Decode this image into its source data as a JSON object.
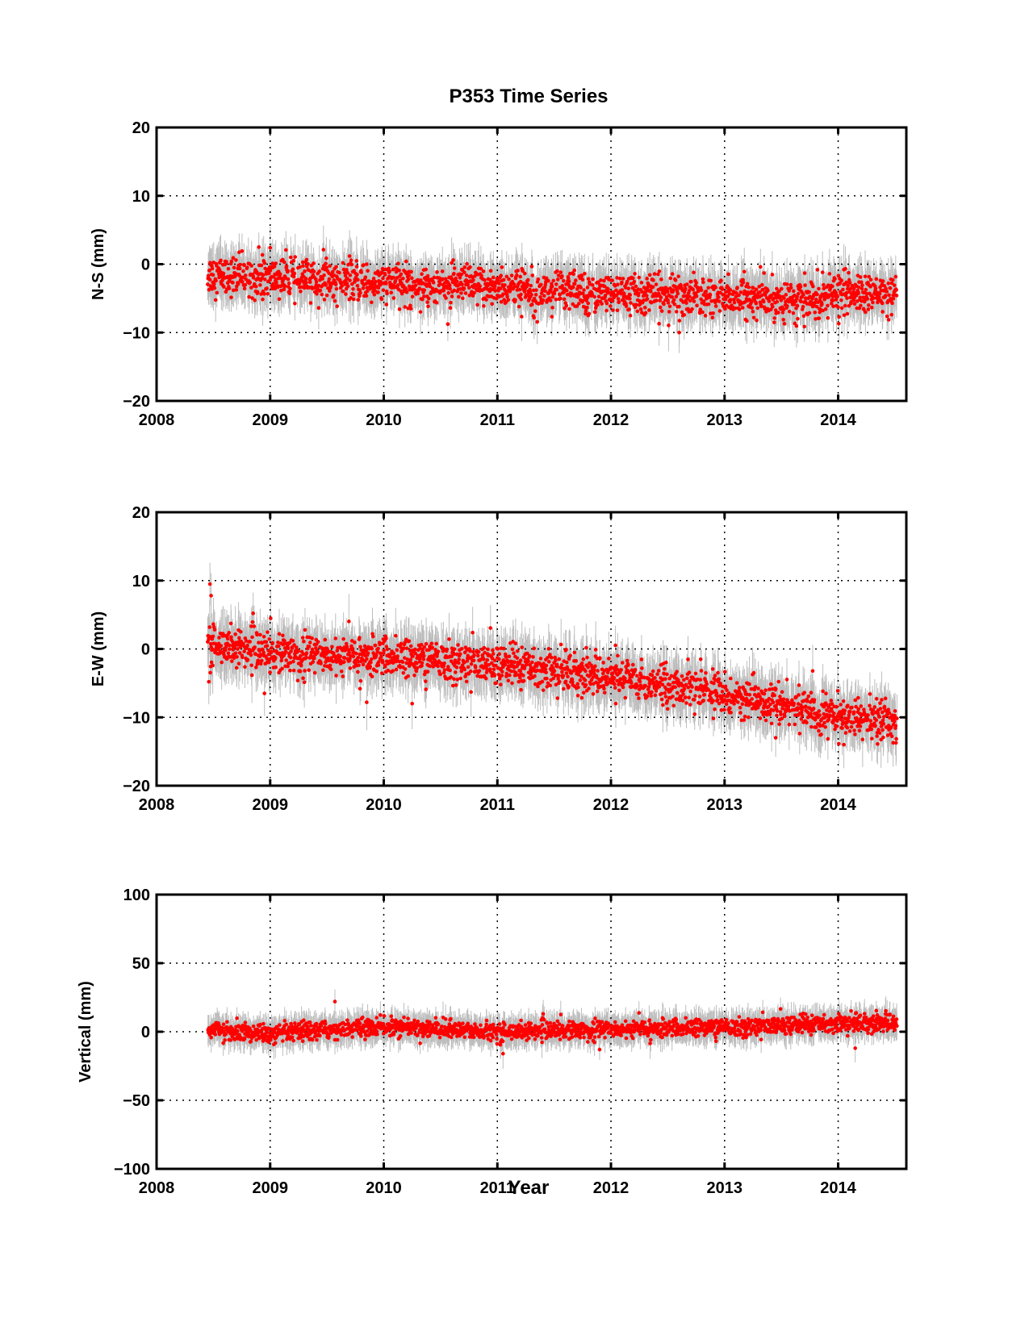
{
  "figure": {
    "title": "P353 Time Series",
    "xlabel": "Year"
  },
  "colors": {
    "points": "#ff0000",
    "error_bars": "#bdbdbd",
    "axes": "#000000",
    "grid": "#000000"
  },
  "chart_data": [
    {
      "type": "scatter",
      "title": "P353 Time Series",
      "xlabel": "",
      "ylabel": "N-S (mm)",
      "xlim": [
        2008,
        2014.6
      ],
      "ylim": [
        -20,
        20
      ],
      "xticks": [
        "2008",
        "2009",
        "2010",
        "2011",
        "2012",
        "2013",
        "2014"
      ],
      "yticks": [
        "20",
        "10",
        "0",
        "−10",
        "−20"
      ],
      "grid": true,
      "error_bars": true,
      "x_range": [
        2008.45,
        2014.52
      ],
      "trend": [
        [
          2008.45,
          -1.5
        ],
        [
          2009.0,
          -2.0
        ],
        [
          2010.0,
          -2.8
        ],
        [
          2011.0,
          -3.4
        ],
        [
          2012.0,
          -4.3
        ],
        [
          2013.0,
          -4.8
        ],
        [
          2013.7,
          -5.4
        ],
        [
          2014.0,
          -4.3
        ],
        [
          2014.52,
          -4.6
        ]
      ],
      "scatter_sd": 1.4,
      "error_half_width": 3.0,
      "outliers": [
        [
          2008.9,
          2.5
        ],
        [
          2009.0,
          2.4
        ],
        [
          2011.8,
          -7.5
        ],
        [
          2012.6,
          -10.0
        ],
        [
          2014.05,
          -0.8
        ]
      ]
    },
    {
      "type": "scatter",
      "xlabel": "",
      "ylabel": "E-W (mm)",
      "xlim": [
        2008,
        2014.6
      ],
      "ylim": [
        -20,
        20
      ],
      "xticks": [
        "2008",
        "2009",
        "2010",
        "2011",
        "2012",
        "2013",
        "2014"
      ],
      "yticks": [
        "20",
        "10",
        "0",
        "−10",
        "−20"
      ],
      "grid": true,
      "error_bars": true,
      "x_range": [
        2008.45,
        2014.52
      ],
      "trend": [
        [
          2008.45,
          0.8
        ],
        [
          2009.0,
          -0.5
        ],
        [
          2010.0,
          -1.2
        ],
        [
          2011.0,
          -2.3
        ],
        [
          2012.0,
          -4.0
        ],
        [
          2013.0,
          -6.5
        ],
        [
          2014.0,
          -10.0
        ],
        [
          2014.52,
          -10.8
        ]
      ],
      "scatter_sd": 1.4,
      "error_half_width": 3.2,
      "outliers": [
        [
          2008.47,
          9.5
        ],
        [
          2008.48,
          7.8
        ],
        [
          2008.46,
          -4.8
        ],
        [
          2008.95,
          -6.5
        ],
        [
          2009.85,
          -7.8
        ],
        [
          2010.25,
          -8.0
        ],
        [
          2013.45,
          -13.0
        ],
        [
          2014.05,
          -14.0
        ]
      ]
    },
    {
      "type": "scatter",
      "xlabel": "Year",
      "ylabel": "Vertical (mm)",
      "xlim": [
        2008,
        2014.6
      ],
      "ylim": [
        -100,
        100
      ],
      "xticks": [
        "2008",
        "2009",
        "2010",
        "2011",
        "2012",
        "2013",
        "2014"
      ],
      "yticks": [
        "100",
        "50",
        "0",
        "−50",
        "−100"
      ],
      "grid": true,
      "error_bars": true,
      "x_range": [
        2008.45,
        2014.52
      ],
      "trend": [
        [
          2008.45,
          2.0
        ],
        [
          2009.0,
          -2.0
        ],
        [
          2009.6,
          2.0
        ],
        [
          2010.0,
          3.5
        ],
        [
          2011.0,
          0.0
        ],
        [
          2012.0,
          2.0
        ],
        [
          2013.0,
          3.0
        ],
        [
          2014.0,
          6.0
        ],
        [
          2014.52,
          7.0
        ]
      ],
      "scatter_sd": 3.2,
      "error_half_width": 9.0,
      "outliers": [
        [
          2009.57,
          22.0
        ],
        [
          2011.05,
          -16.0
        ],
        [
          2011.9,
          -13.0
        ],
        [
          2014.15,
          -12.0
        ]
      ]
    }
  ]
}
